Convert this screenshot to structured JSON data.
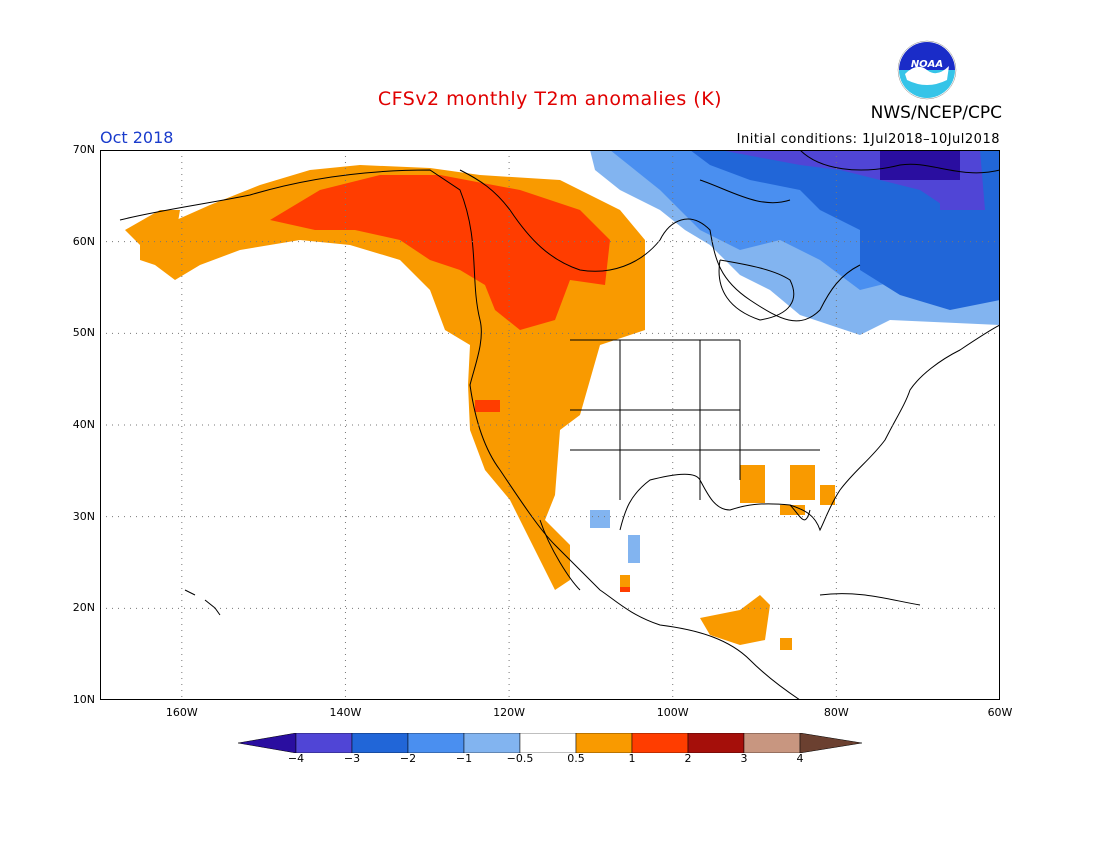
{
  "title": "CFSv2 monthly T2m anomalies (K)",
  "agency": "NWS/NCEP/CPC",
  "logo_text": "NOAA",
  "valid_month": "Oct 2018",
  "initial_conditions": "Initial conditions: 1Jul2018–10Jul2018",
  "lat_labels": [
    "70N",
    "60N",
    "50N",
    "40N",
    "30N",
    "20N",
    "10N"
  ],
  "lon_labels": [
    "160W",
    "140W",
    "120W",
    "100W",
    "80W",
    "60W"
  ],
  "colorbar": {
    "labels": [
      "−4",
      "−3",
      "−2",
      "−1",
      "−0.5",
      "0.5",
      "1",
      "2",
      "3",
      "4"
    ],
    "colors": [
      "#2a0ea0",
      "#5045d6",
      "#2166d8",
      "#4a8ff0",
      "#82b4f0",
      "#ffffff",
      "#f99a00",
      "#ff3d00",
      "#a50f0a",
      "#c89680",
      "#6b4030"
    ]
  },
  "map_data": {
    "variable": "2m temperature anomaly",
    "units": "K",
    "extent": {
      "lon": [
        -170,
        -60
      ],
      "lat": [
        10,
        70
      ]
    },
    "regions": [
      {
        "name": "Alaska / western Canada",
        "range": "0.5 to 1"
      },
      {
        "name": "British Columbia / Yukon interior",
        "range": "1 to 2"
      },
      {
        "name": "US West Coast / Great Basin",
        "range": "0.5 to 1"
      },
      {
        "name": "Northeastern Canada / Hudson Bay",
        "range": "-0.5 to -2"
      },
      {
        "name": "Baffin Island",
        "range": "-2 to -4"
      },
      {
        "name": "Southeastern US",
        "range": "0.5 to 1"
      },
      {
        "name": "Central America",
        "range": "0.5 to 1"
      },
      {
        "name": "Northwestern Mexico",
        "range": "-0.5 to -1"
      }
    ]
  }
}
